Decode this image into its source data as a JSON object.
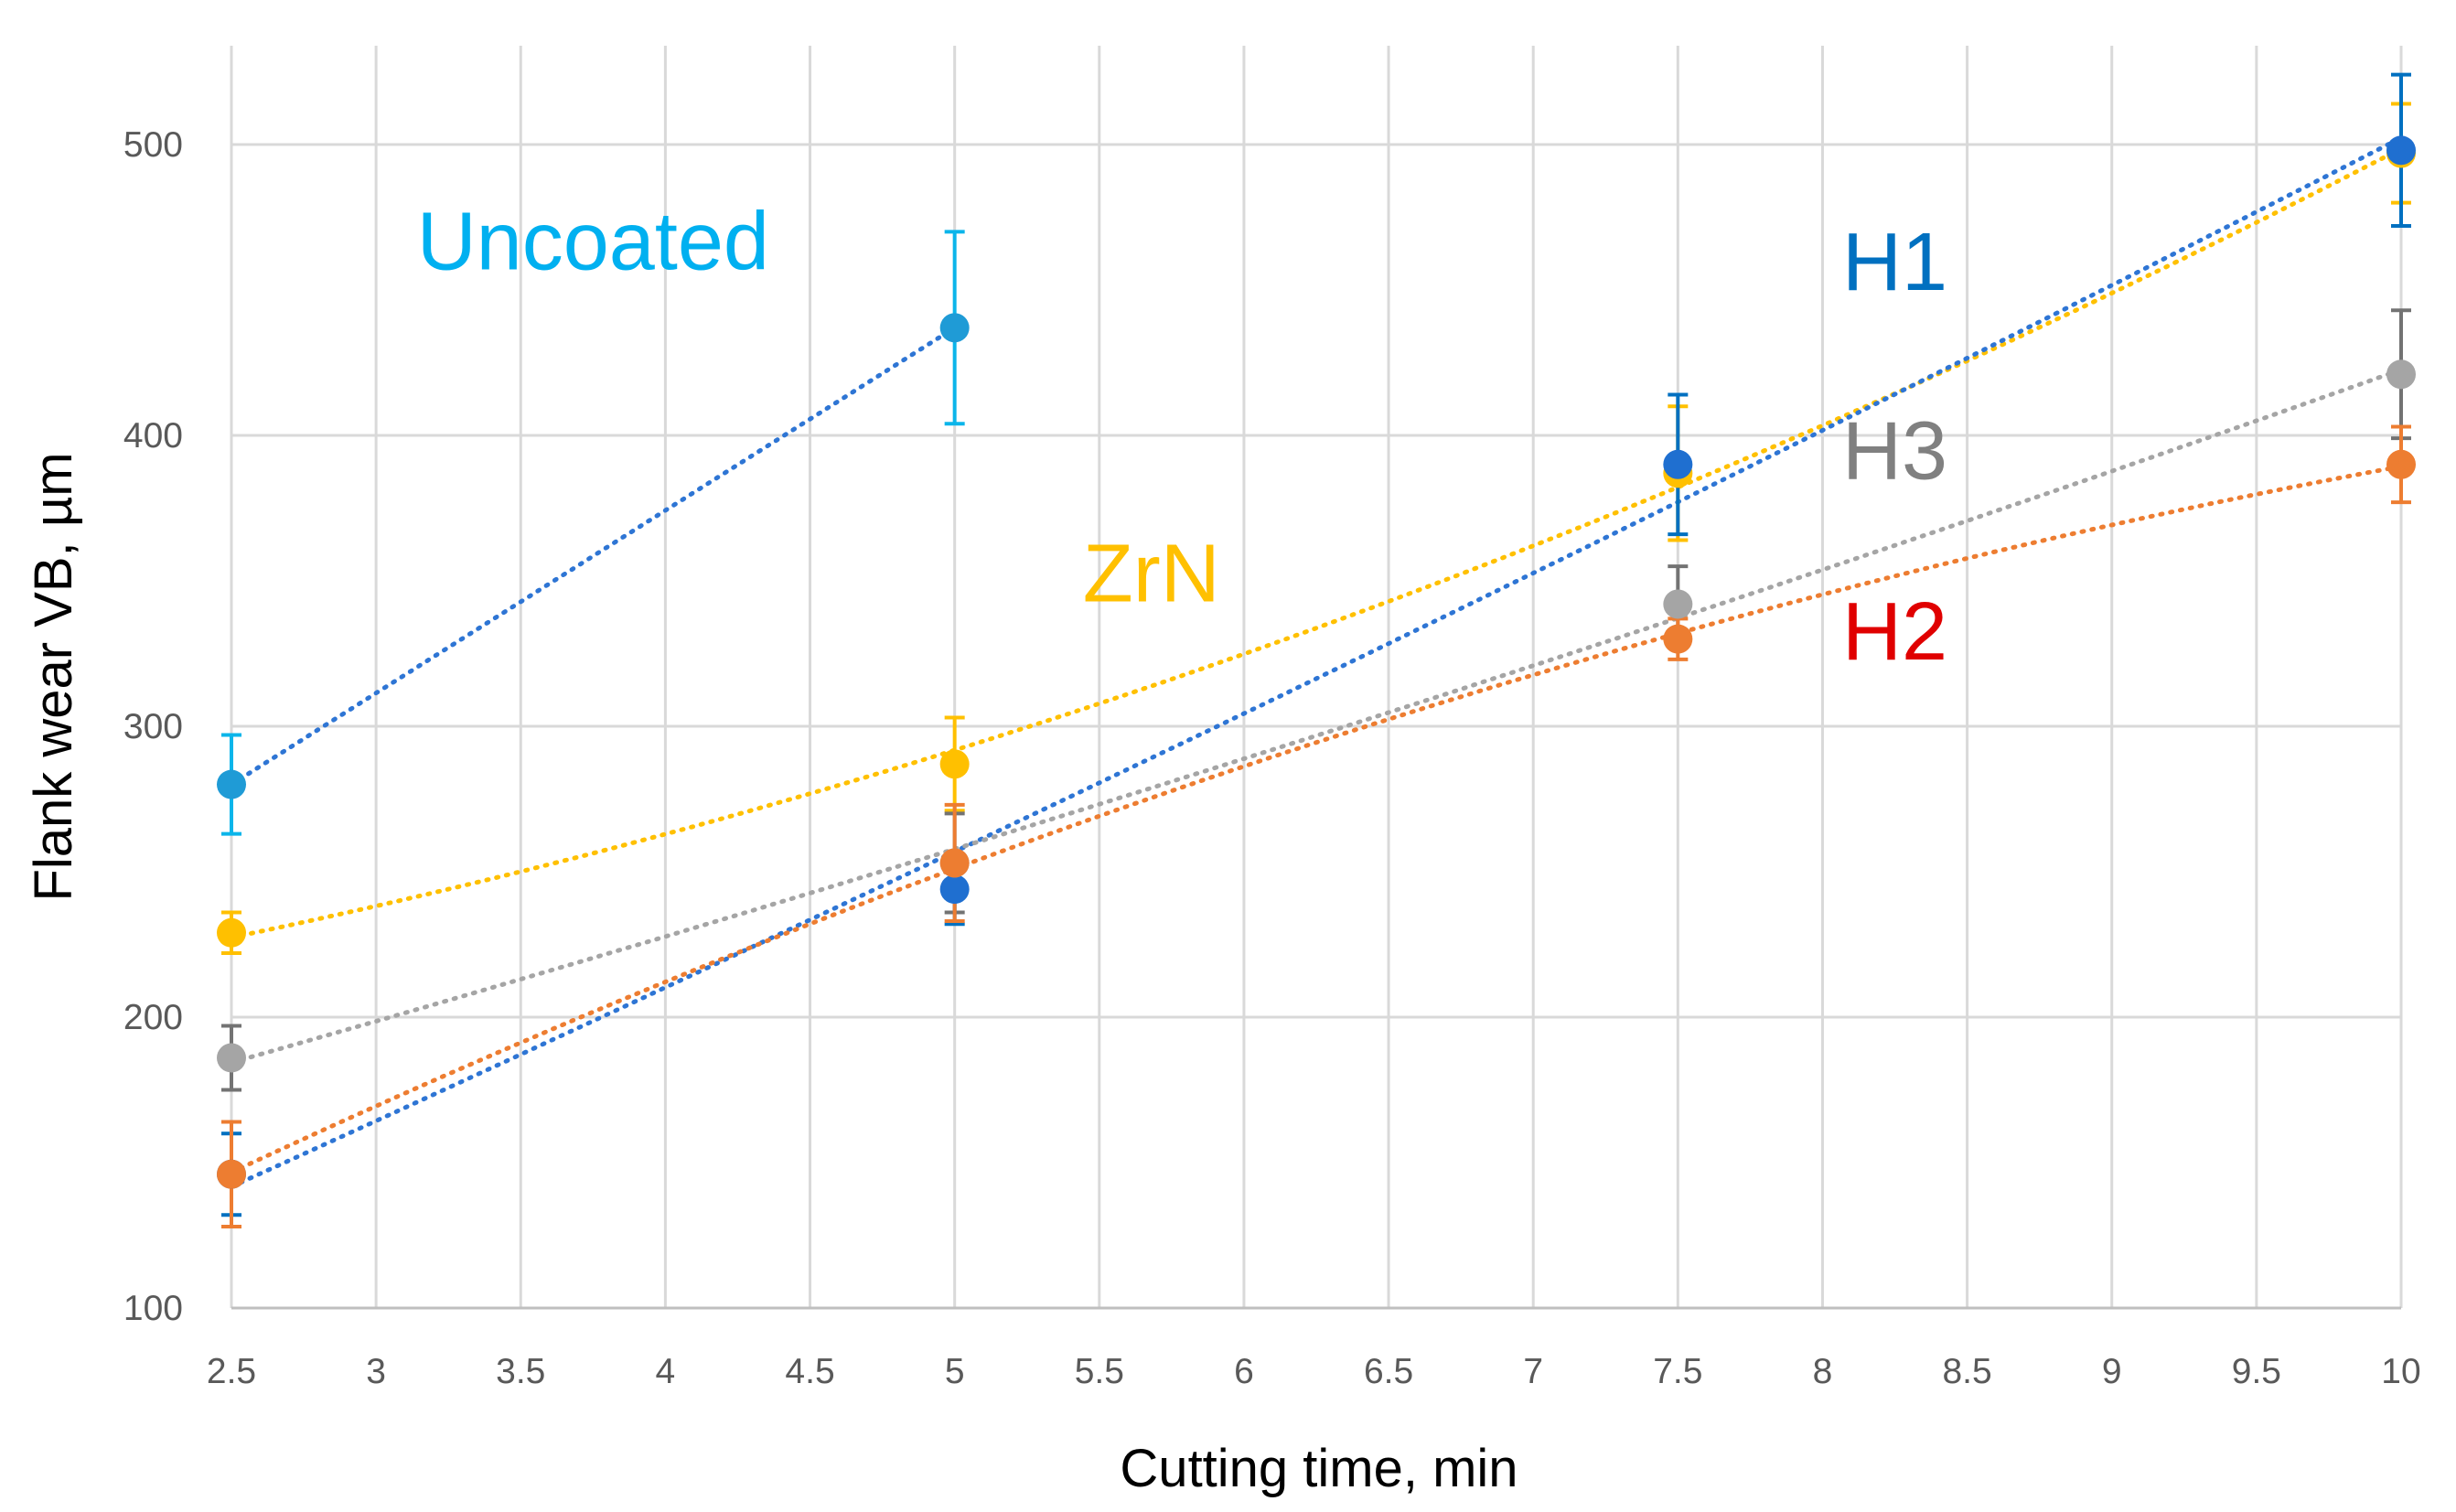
{
  "chart_data": {
    "type": "scatter",
    "title": "",
    "xlabel": "Cutting time, min",
    "ylabel": "Flank wear VB, µm",
    "xlim": [
      2.5,
      10
    ],
    "ylim": [
      100,
      520
    ],
    "x_ticks": [
      "2.5",
      "3",
      "3.5",
      "4",
      "4.5",
      "5",
      "5.5",
      "6",
      "6.5",
      "7",
      "7.5",
      "8",
      "8.5",
      "9",
      "9.5",
      "10"
    ],
    "y_ticks": [
      "100",
      "200",
      "300",
      "400",
      "500"
    ],
    "grid": true,
    "series": [
      {
        "name": "Uncoated",
        "color": "#00b0f0",
        "marker_color": "#1f9bd6",
        "line_color": "#2e75d4",
        "error_color": "#0bb5ea",
        "label_at": [
          3.75,
          457
        ],
        "x": [
          2.5,
          5
        ],
        "y": [
          280,
          437
        ],
        "err": [
          17,
          33
        ]
      },
      {
        "name": "ZrN",
        "color": "#ffc000",
        "marker_color": "#ffc000",
        "line_color": "#ffc000",
        "error_color": "#ffc000",
        "label_at": [
          5.68,
          343
        ],
        "x": [
          2.5,
          5,
          7.5,
          10
        ],
        "y": [
          229,
          287,
          387,
          497
        ],
        "err": [
          7,
          16,
          23,
          17
        ]
      },
      {
        "name": "H1",
        "color": "#0070c0",
        "marker_color": "#1f6fd0",
        "line_color": "#2e75d4",
        "error_color": "#0070c0",
        "label_at": [
          8.25,
          450
        ],
        "x": [
          2.5,
          5,
          7.5,
          10
        ],
        "y": [
          146,
          244,
          390,
          498
        ],
        "err": [
          14,
          12,
          24,
          26
        ]
      },
      {
        "name": "H3",
        "color": "#808080",
        "marker_color": "#a5a5a5",
        "line_color": "#a5a5a5",
        "error_color": "#737373",
        "label_at": [
          8.25,
          385
        ],
        "x": [
          2.5,
          5,
          7.5,
          10
        ],
        "y": [
          186,
          253,
          342,
          421
        ],
        "err": [
          11,
          17,
          13,
          22
        ]
      },
      {
        "name": "H2",
        "color": "#e00000",
        "marker_color": "#ed7d31",
        "line_color": "#ed7d31",
        "error_color": "#ed7d31",
        "label_at": [
          8.25,
          323
        ],
        "x": [
          2.5,
          5,
          7.5,
          10
        ],
        "y": [
          146,
          253,
          330,
          390
        ],
        "err": [
          18,
          20,
          7,
          13
        ]
      }
    ]
  }
}
